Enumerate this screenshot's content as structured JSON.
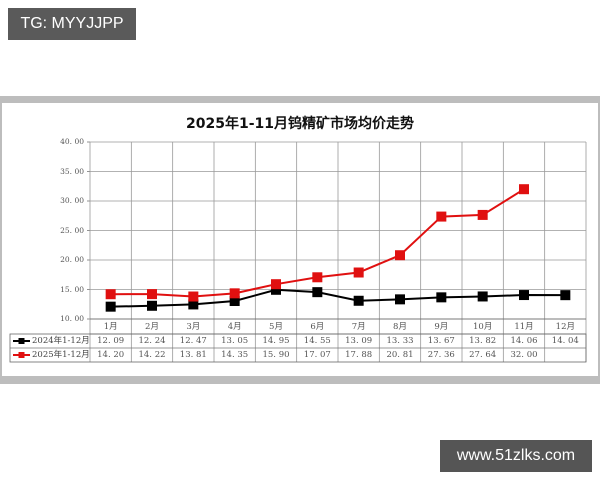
{
  "overlay": {
    "tag_text": "TG: MYYJJPP",
    "watermark_text": "www.51zlks.com"
  },
  "chart_data": {
    "type": "line",
    "title": "2025年1-11月钨精矿市场均价走势",
    "xlabel": "",
    "ylabel": "",
    "categories": [
      "1月",
      "2月",
      "3月",
      "4月",
      "5月",
      "6月",
      "7月",
      "8月",
      "9月",
      "10月",
      "11月",
      "12月"
    ],
    "ylim": [
      10,
      40
    ],
    "yticks": [
      "40.00",
      "35.00",
      "30.00",
      "25.00",
      "20.00",
      "15.00",
      "10.00"
    ],
    "grid": true,
    "legend_position": "data-table-left",
    "series": [
      {
        "name": "2024年1-12月",
        "color": "#000000",
        "values": [
          12.09,
          12.24,
          12.47,
          13.05,
          14.95,
          14.55,
          13.09,
          13.33,
          13.67,
          13.82,
          14.06,
          14.04
        ],
        "labels": [
          "12.09",
          "12.24",
          "12.47",
          "13.05",
          "14.95",
          "14.55",
          "13.09",
          "13.33",
          "13.67",
          "13.82",
          "14.06",
          "14.04"
        ]
      },
      {
        "name": "2025年1-12月",
        "color": "#e01010",
        "values": [
          14.2,
          14.22,
          13.81,
          14.35,
          15.9,
          17.07,
          17.88,
          20.81,
          27.36,
          27.64,
          32.0,
          null
        ],
        "labels": [
          "14.20",
          "14.22",
          "13.81",
          "14.35",
          "15.90",
          "17.07",
          "17.88",
          "20.81",
          "27.36",
          "27.64",
          "32.00",
          ""
        ]
      }
    ]
  }
}
